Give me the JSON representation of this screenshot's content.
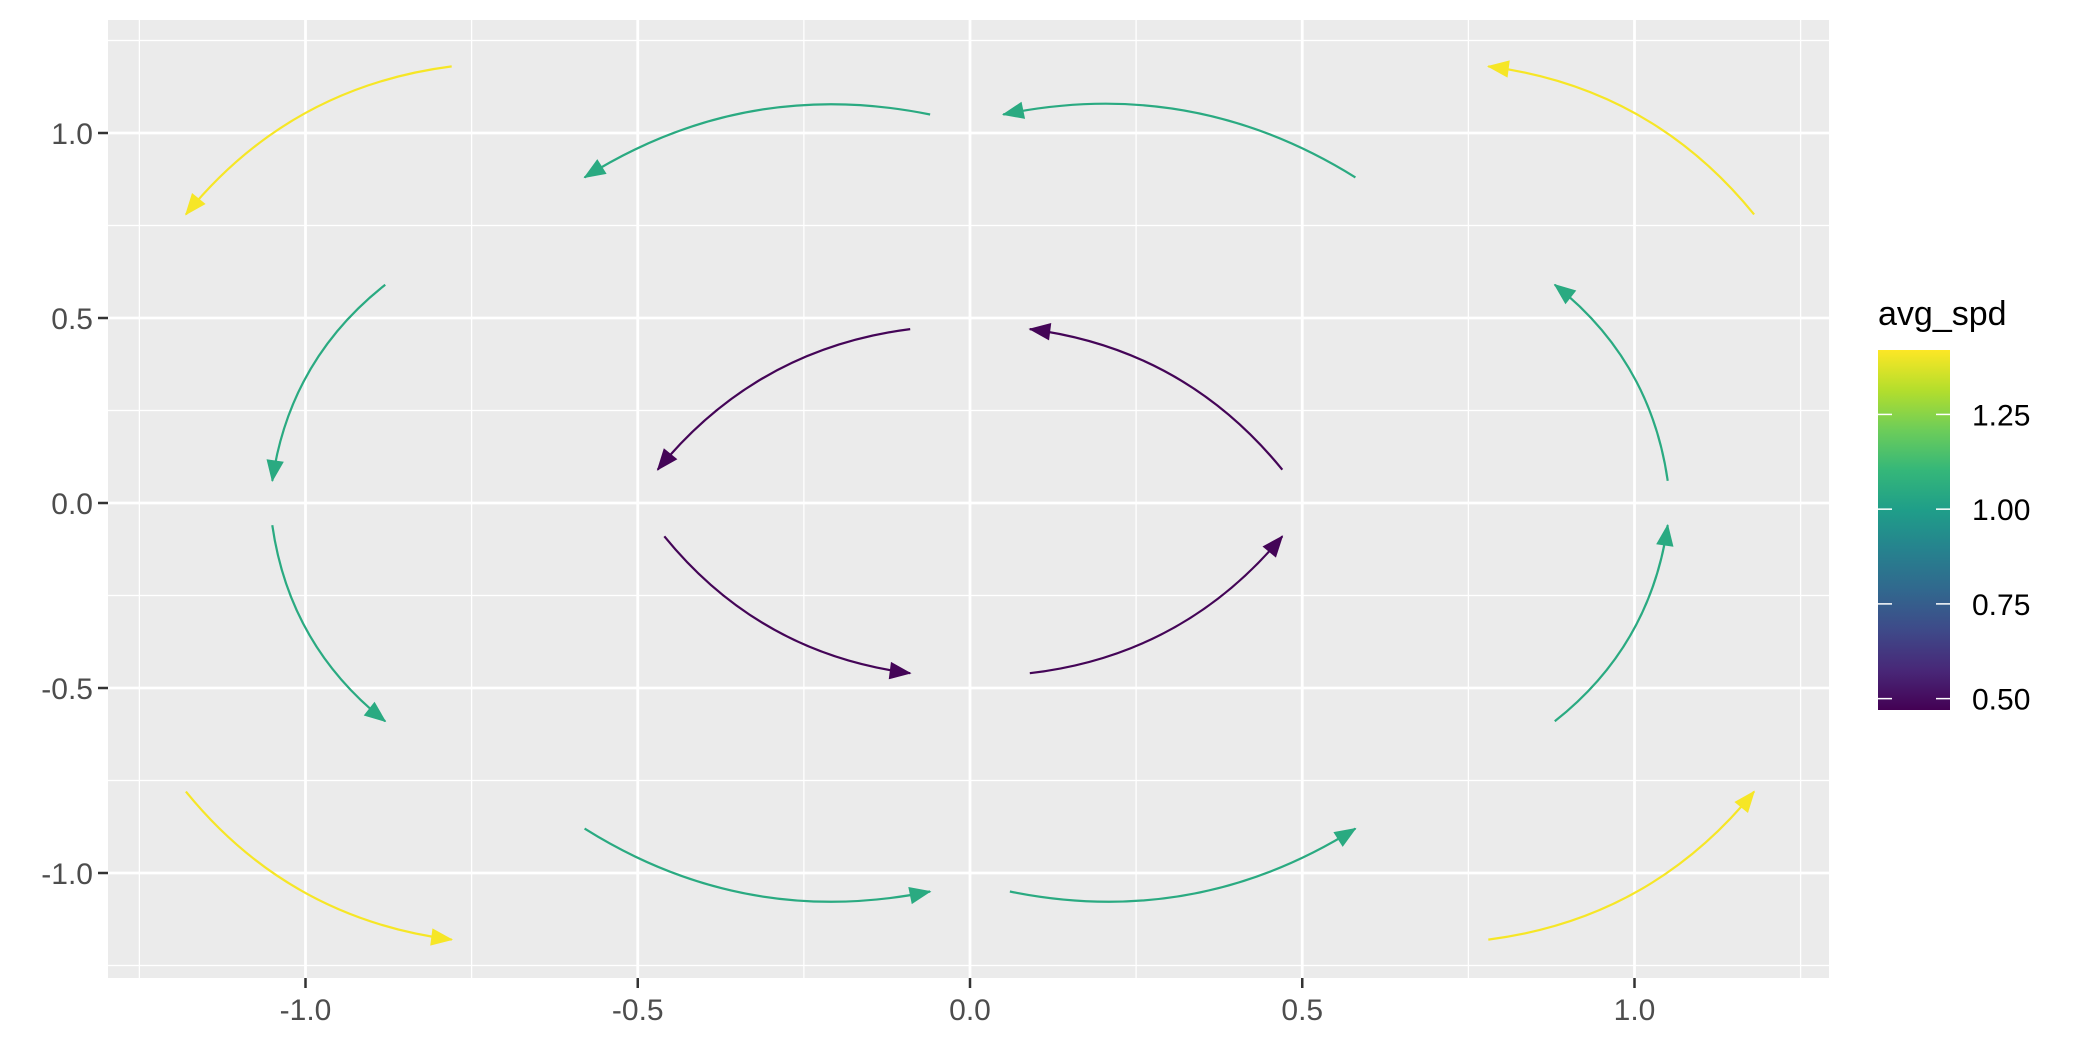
{
  "chart_data": {
    "type": "curved-arrow-segments",
    "xlabel": "",
    "ylabel": "",
    "xlim": [
      -1.29,
      1.29
    ],
    "ylim": [
      -1.29,
      1.3
    ],
    "x_ticks": [
      -1.0,
      -0.5,
      0.0,
      0.5,
      1.0
    ],
    "x_tick_labels": [
      "-1.0",
      "-0.5",
      "0.0",
      "0.5",
      "1.0"
    ],
    "y_ticks": [
      -1.0,
      -0.5,
      0.0,
      0.5,
      1.0
    ],
    "y_tick_labels": [
      "-1.0",
      "-0.5",
      "0.0",
      "0.5",
      "1.0"
    ],
    "grid": true,
    "legend": {
      "title": "avg_spd",
      "placement": "right",
      "type": "colorbar",
      "palette": "viridis",
      "range": [
        0.47,
        1.42
      ],
      "ticks": [
        0.5,
        0.75,
        1.0,
        1.25
      ],
      "tick_labels": [
        "0.50",
        "0.75",
        "1.00",
        "1.25"
      ]
    },
    "segments": [
      {
        "x": -0.78,
        "y": 1.18,
        "xend": -1.18,
        "yend": 0.78,
        "avg_spd": 1.41
      },
      {
        "x": -0.06,
        "y": 1.05,
        "xend": -0.58,
        "yend": 0.88,
        "avg_spd": 1.05
      },
      {
        "x": 0.58,
        "y": 0.88,
        "xend": 0.05,
        "yend": 1.05,
        "avg_spd": 1.05
      },
      {
        "x": 1.18,
        "y": 0.78,
        "xend": 0.78,
        "yend": 1.18,
        "avg_spd": 1.41
      },
      {
        "x": -0.88,
        "y": 0.59,
        "xend": -1.05,
        "yend": 0.06,
        "avg_spd": 1.05
      },
      {
        "x": -0.09,
        "y": 0.47,
        "xend": -0.47,
        "yend": 0.09,
        "avg_spd": 0.48
      },
      {
        "x": 0.47,
        "y": 0.09,
        "xend": 0.09,
        "yend": 0.47,
        "avg_spd": 0.48
      },
      {
        "x": 1.05,
        "y": 0.06,
        "xend": 0.88,
        "yend": 0.59,
        "avg_spd": 1.05
      },
      {
        "x": -1.05,
        "y": -0.06,
        "xend": -0.88,
        "yend": -0.59,
        "avg_spd": 1.05
      },
      {
        "x": -0.46,
        "y": -0.09,
        "xend": -0.09,
        "yend": -0.46,
        "avg_spd": 0.48
      },
      {
        "x": 0.09,
        "y": -0.46,
        "xend": 0.47,
        "yend": -0.09,
        "avg_spd": 0.48
      },
      {
        "x": 0.88,
        "y": -0.59,
        "xend": 1.05,
        "yend": -0.06,
        "avg_spd": 1.05
      },
      {
        "x": -1.18,
        "y": -0.78,
        "xend": -0.78,
        "yend": -1.18,
        "avg_spd": 1.41
      },
      {
        "x": -0.58,
        "y": -0.88,
        "xend": -0.06,
        "yend": -1.05,
        "avg_spd": 1.05
      },
      {
        "x": 0.06,
        "y": -1.05,
        "xend": 0.58,
        "yend": -0.88,
        "avg_spd": 1.05
      },
      {
        "x": 0.78,
        "y": -1.18,
        "xend": 1.18,
        "yend": -0.78,
        "avg_spd": 1.41
      }
    ],
    "colors": {
      "panel_background": "#EBEBEB",
      "grid": "#FFFFFF",
      "viridis": [
        "#440154",
        "#482878",
        "#3E4A89",
        "#31688E",
        "#26828E",
        "#1F9E89",
        "#35B779",
        "#6DCD59",
        "#B4DE2C",
        "#FDE725"
      ]
    }
  }
}
